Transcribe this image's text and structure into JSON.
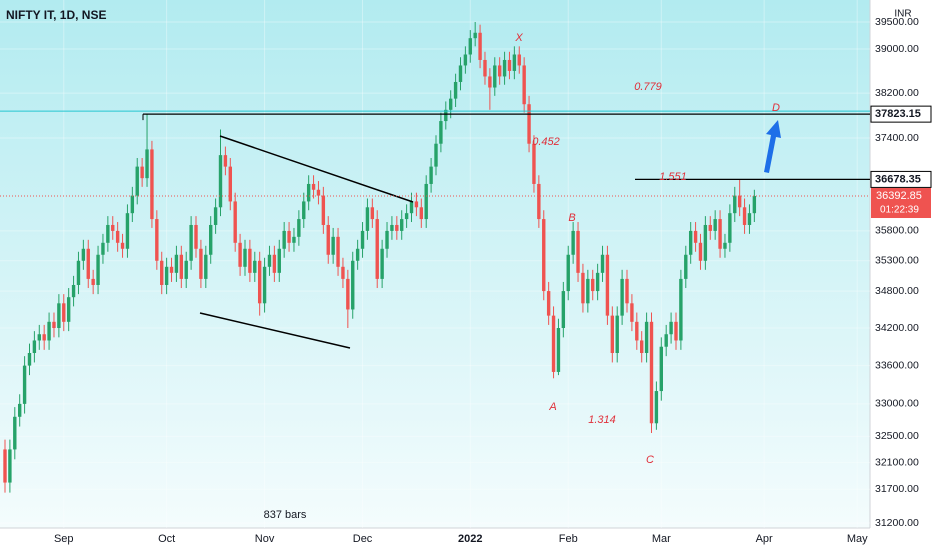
{
  "chart_data": {
    "type": "candlestick",
    "title": "NIFTY IT, 1D, NSE",
    "currency": "INR",
    "bars_label": "837 bars",
    "countdown": "01:22:39",
    "log_scale": true,
    "up_color": "#26a269",
    "down_color": "#ef5350",
    "ylim": [
      31127,
      39911
    ],
    "yticks": [
      {
        "value": 39500,
        "label": "39500.00"
      },
      {
        "value": 39000,
        "label": "39000.00"
      },
      {
        "value": 38200,
        "label": "38200.00"
      },
      {
        "value": 37400,
        "label": "37400.00"
      },
      {
        "value": 35800,
        "label": "35800.00"
      },
      {
        "value": 35300,
        "label": "35300.00"
      },
      {
        "value": 34800,
        "label": "34800.00"
      },
      {
        "value": 34200,
        "label": "34200.00"
      },
      {
        "value": 33600,
        "label": "33600.00"
      },
      {
        "value": 33000,
        "label": "33000.00"
      },
      {
        "value": 32500,
        "label": "32500.00"
      },
      {
        "value": 32100,
        "label": "32100.00"
      },
      {
        "value": 31700,
        "label": "31700.00"
      },
      {
        "value": 31200,
        "label": "31200.00"
      }
    ],
    "xlim": [
      0,
      176
    ],
    "xticks": [
      {
        "value": 12,
        "label": "Sep"
      },
      {
        "value": 33,
        "label": "Oct"
      },
      {
        "value": 53,
        "label": "Nov"
      },
      {
        "value": 73,
        "label": "Dec"
      },
      {
        "value": 95,
        "label": "2022"
      },
      {
        "value": 115,
        "label": "Feb"
      },
      {
        "value": 134,
        "label": "Mar"
      },
      {
        "value": 155,
        "label": "Apr"
      },
      {
        "value": 174,
        "label": "May"
      }
    ],
    "price_lines": [
      {
        "value": 37823.15,
        "label": "37823.15"
      },
      {
        "value": 36678.35,
        "label": "36678.35"
      }
    ],
    "last_price_label": "36392.85",
    "annotations": [
      "X",
      "0.779",
      "D",
      "0.452",
      "1.551",
      "B",
      "A",
      "1.314",
      "C"
    ],
    "open": [
      32300,
      31800,
      32300,
      32800,
      33000,
      33600,
      33800,
      34000,
      34100,
      34000,
      34300,
      34200,
      34600,
      34300,
      34700,
      34900,
      35300,
      35500,
      35000,
      34900,
      35400,
      35600,
      35900,
      35800,
      35600,
      35500,
      36100,
      36400,
      36900,
      36700,
      37200,
      36000,
      35300,
      34900,
      35200,
      35100,
      35400,
      35000,
      35300,
      35900,
      35500,
      35000,
      35400,
      35900,
      36200,
      37100,
      36900,
      36300,
      35600,
      35200,
      35500,
      35100,
      35300,
      34600,
      35200,
      35400,
      35100,
      35500,
      35800,
      35600,
      35700,
      36000,
      36300,
      36600,
      36500,
      36400,
      35900,
      35400,
      35700,
      35200,
      35000,
      34500,
      35300,
      35500,
      35800,
      36200,
      36000,
      35000,
      35500,
      35800,
      35900,
      35800,
      36000,
      36100,
      36300,
      36200,
      36000,
      36600,
      36900,
      37300,
      37700,
      37900,
      38100,
      38400,
      38700,
      38900,
      39200,
      39300,
      38800,
      38500,
      38300,
      38700,
      38500,
      38800,
      38600,
      38900,
      38700,
      38000,
      37300,
      36600,
      36000,
      34800,
      34400,
      33500,
      34200,
      34800,
      35400,
      35800,
      35100,
      34600,
      35000,
      34800,
      35100,
      35400,
      34400,
      33800,
      34400,
      35000,
      34600,
      34300,
      34000,
      33800,
      34300,
      32700,
      33200,
      33900,
      34100,
      34300,
      34000,
      35000,
      35400,
      35800,
      35600,
      35300,
      35900,
      35800,
      36000,
      35500,
      35600,
      36100,
      36400,
      36200,
      35900,
      36100
    ],
    "high": [
      32450,
      32450,
      32950,
      33150,
      33750,
      33950,
      34150,
      34250,
      34250,
      34450,
      34450,
      34750,
      34750,
      34850,
      35050,
      35450,
      35650,
      35650,
      35150,
      35550,
      35750,
      36050,
      36050,
      35950,
      35750,
      36250,
      36550,
      37050,
      37050,
      37823.15,
      37350,
      36150,
      35450,
      35350,
      35350,
      35550,
      35550,
      35450,
      36050,
      36050,
      35650,
      35550,
      36050,
      36350,
      37550,
      37250,
      37050,
      36450,
      35750,
      35650,
      35650,
      35450,
      35450,
      35350,
      35550,
      35550,
      35650,
      35950,
      35950,
      35850,
      36150,
      36450,
      36750,
      36750,
      36650,
      36550,
      36050,
      35850,
      35850,
      35350,
      35150,
      35450,
      35650,
      35950,
      36350,
      36350,
      36150,
      35650,
      35950,
      36050,
      36050,
      36150,
      36250,
      36450,
      36450,
      36350,
      36750,
      37050,
      37450,
      37850,
      38050,
      38250,
      38550,
      38850,
      39050,
      39350,
      39500,
      39450,
      38950,
      38650,
      38850,
      38850,
      38950,
      38950,
      39050,
      39050,
      38850,
      38150,
      37450,
      36750,
      36150,
      34950,
      34550,
      34350,
      34950,
      35550,
      35950,
      35950,
      35250,
      35150,
      35150,
      35250,
      35550,
      35550,
      34550,
      34550,
      35150,
      35150,
      34750,
      34450,
      34150,
      34450,
      34450,
      33350,
      34050,
      34250,
      34450,
      34450,
      35150,
      35550,
      35950,
      35950,
      35750,
      36050,
      36050,
      36150,
      36150,
      35750,
      36250,
      36550,
      36678.35,
      36350,
      36250,
      36500
    ],
    "low": [
      31650,
      31650,
      32150,
      32650,
      32850,
      33450,
      33650,
      33850,
      33850,
      33850,
      34050,
      34050,
      34150,
      34150,
      34550,
      34750,
      35150,
      34850,
      34750,
      34750,
      35250,
      35450,
      35650,
      35450,
      35350,
      35350,
      35950,
      36250,
      36550,
      36550,
      35850,
      35150,
      34750,
      34750,
      34950,
      34950,
      34850,
      34850,
      35150,
      35350,
      34850,
      34850,
      35250,
      35750,
      36050,
      36750,
      36150,
      35450,
      35050,
      35050,
      34950,
      34950,
      34400,
      34450,
      35050,
      34950,
      34950,
      35350,
      35450,
      35450,
      35550,
      35850,
      36150,
      36350,
      36250,
      35750,
      35250,
      35250,
      35050,
      34850,
      34200,
      34350,
      35150,
      35350,
      35650,
      35850,
      34850,
      34850,
      35350,
      35650,
      35650,
      35650,
      35850,
      35950,
      36050,
      35850,
      35850,
      36450,
      36750,
      37150,
      37550,
      37750,
      37950,
      38250,
      38550,
      38750,
      39050,
      38650,
      38350,
      37900,
      38150,
      38350,
      38350,
      38450,
      38450,
      38550,
      37850,
      37150,
      36450,
      35850,
      34650,
      34250,
      33400,
      33450,
      34050,
      34650,
      35250,
      34950,
      34450,
      34450,
      34650,
      34650,
      34950,
      34250,
      33650,
      33650,
      34250,
      34450,
      34150,
      33850,
      33650,
      33650,
      32550,
      32600,
      33050,
      33750,
      33950,
      33850,
      33850,
      34850,
      35250,
      35450,
      35150,
      35150,
      35650,
      35650,
      35350,
      35350,
      35450,
      35950,
      36050,
      35750,
      35750,
      35950
    ],
    "close": [
      31800,
      32300,
      32800,
      33000,
      33600,
      33800,
      34000,
      34100,
      34000,
      34300,
      34200,
      34600,
      34300,
      34700,
      34900,
      35300,
      35500,
      35000,
      34900,
      35400,
      35600,
      35900,
      35800,
      35600,
      35500,
      36100,
      36400,
      36900,
      36700,
      37200,
      36000,
      35300,
      34900,
      35200,
      35100,
      35400,
      35000,
      35300,
      35900,
      35500,
      35000,
      35400,
      35900,
      36200,
      37100,
      36900,
      36300,
      35600,
      35200,
      35500,
      35100,
      35300,
      34600,
      35200,
      35400,
      35100,
      35500,
      35800,
      35600,
      35700,
      36000,
      36300,
      36600,
      36500,
      36400,
      35900,
      35400,
      35700,
      35200,
      35000,
      34500,
      35300,
      35500,
      35800,
      36200,
      36000,
      35000,
      35500,
      35800,
      35900,
      35800,
      36000,
      36100,
      36300,
      36200,
      36000,
      36600,
      36900,
      37300,
      37700,
      37900,
      38100,
      38400,
      38700,
      38900,
      39200,
      39300,
      38800,
      38500,
      38300,
      38700,
      38500,
      38800,
      38600,
      38900,
      38700,
      38000,
      37300,
      36600,
      36000,
      34800,
      34400,
      33500,
      34200,
      34800,
      35400,
      35800,
      35100,
      34600,
      35000,
      34800,
      35100,
      35400,
      34400,
      33800,
      34400,
      35000,
      34600,
      34300,
      34000,
      33800,
      34300,
      32700,
      33200,
      33900,
      34100,
      34300,
      34000,
      35000,
      35400,
      35800,
      35600,
      35300,
      35900,
      35800,
      36000,
      35500,
      35600,
      36100,
      36400,
      36200,
      35900,
      36100,
      36392.85
    ]
  }
}
